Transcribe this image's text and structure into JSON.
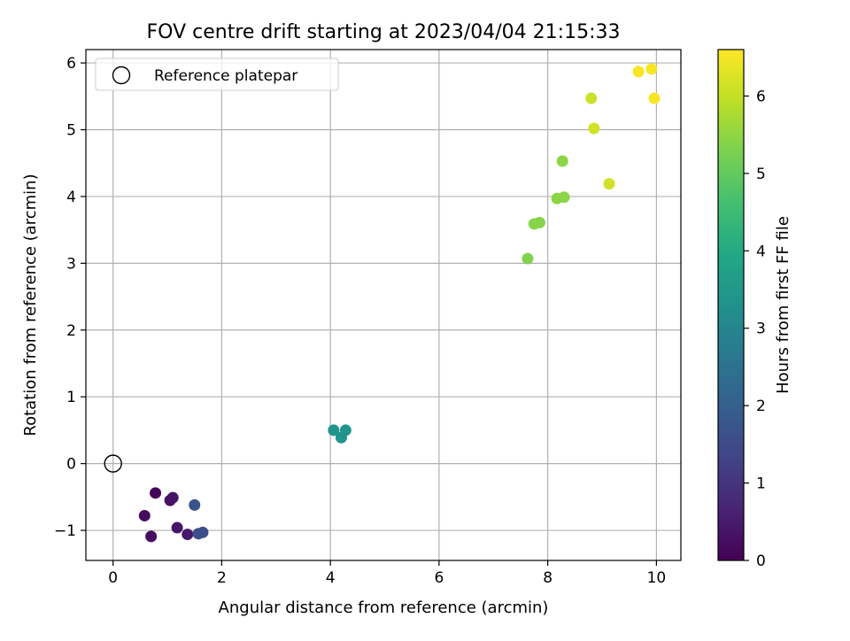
{
  "chart_data": {
    "type": "scatter",
    "title": "FOV centre drift starting at 2023/04/04 21:15:33",
    "xlabel": "Angular distance from reference (arcmin)",
    "ylabel": "Rotation from reference (arcmin)",
    "xlim": [
      -0.5,
      10.45
    ],
    "ylim": [
      -1.45,
      6.2
    ],
    "xticks": [
      0,
      2,
      4,
      6,
      8,
      10
    ],
    "xtick_labels": [
      "0",
      "2",
      "4",
      "6",
      "8",
      "10"
    ],
    "yticks": [
      -1,
      0,
      1,
      2,
      3,
      4,
      5,
      6
    ],
    "ytick_labels": [
      "−1",
      "0",
      "1",
      "2",
      "3",
      "4",
      "5",
      "6"
    ],
    "grid": true,
    "legend": {
      "placement": "top-left",
      "entries": [
        "Reference platepar"
      ]
    },
    "reference_point": {
      "x": 0,
      "y": 0
    },
    "colorbar": {
      "label": "Hours from first FF file",
      "range": [
        0,
        6.6
      ],
      "ticks": [
        0,
        1,
        2,
        3,
        4,
        5,
        6
      ],
      "tick_labels": [
        "0",
        "1",
        "2",
        "3",
        "4",
        "5",
        "6"
      ],
      "colormap": "viridis"
    },
    "points": [
      {
        "x": 0.78,
        "y": -0.44,
        "c": 0.1
      },
      {
        "x": 0.58,
        "y": -0.78,
        "c": 0.2
      },
      {
        "x": 0.7,
        "y": -1.09,
        "c": 0.25
      },
      {
        "x": 1.05,
        "y": -0.55,
        "c": 0.3
      },
      {
        "x": 1.1,
        "y": -0.51,
        "c": 0.35
      },
      {
        "x": 1.18,
        "y": -0.96,
        "c": 0.4
      },
      {
        "x": 1.37,
        "y": -1.06,
        "c": 0.45
      },
      {
        "x": 1.5,
        "y": -0.62,
        "c": 1.65
      },
      {
        "x": 1.57,
        "y": -1.05,
        "c": 1.6
      },
      {
        "x": 1.65,
        "y": -1.03,
        "c": 1.6
      },
      {
        "x": 4.06,
        "y": 0.5,
        "c": 3.4
      },
      {
        "x": 4.2,
        "y": 0.39,
        "c": 3.4
      },
      {
        "x": 4.28,
        "y": 0.5,
        "c": 3.4
      },
      {
        "x": 7.63,
        "y": 3.07,
        "c": 5.35
      },
      {
        "x": 7.75,
        "y": 3.59,
        "c": 5.4
      },
      {
        "x": 7.85,
        "y": 3.61,
        "c": 5.4
      },
      {
        "x": 8.17,
        "y": 3.97,
        "c": 5.45
      },
      {
        "x": 8.3,
        "y": 3.99,
        "c": 5.45
      },
      {
        "x": 8.27,
        "y": 4.53,
        "c": 5.45
      },
      {
        "x": 8.8,
        "y": 5.47,
        "c": 6.1
      },
      {
        "x": 8.85,
        "y": 5.02,
        "c": 6.15
      },
      {
        "x": 9.13,
        "y": 4.19,
        "c": 6.15
      },
      {
        "x": 9.67,
        "y": 5.87,
        "c": 6.55
      },
      {
        "x": 9.91,
        "y": 5.91,
        "c": 6.55
      },
      {
        "x": 9.96,
        "y": 5.47,
        "c": 6.55
      }
    ],
    "colors": {
      "grid": "#b0b0b0",
      "axes": "#000000",
      "legend_border": "#cccccc"
    }
  }
}
